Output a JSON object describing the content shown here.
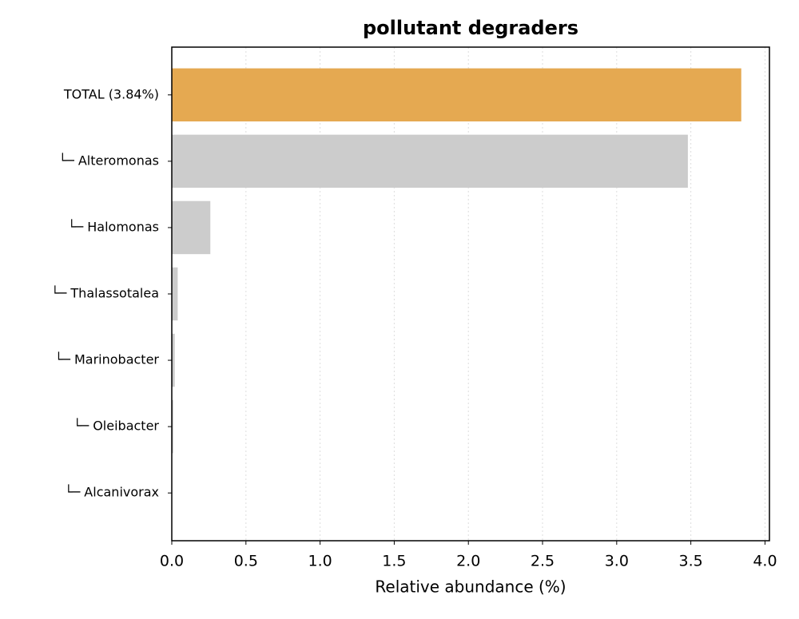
{
  "chart_data": {
    "type": "barh",
    "title": "pollutant degraders",
    "x_label": "Relative abundance (%)",
    "categories": [
      "TOTAL (3.84%)",
      "└─ Alteromonas",
      "└─ Halomonas",
      "└─ Thalassotalea",
      "└─ Marinobacter",
      "└─ Oleibacter",
      "└─ Alcanivorax"
    ],
    "values": [
      3.84,
      3.48,
      0.26,
      0.04,
      0.02,
      0.01,
      0.002
    ],
    "colors": [
      "#e5a951",
      "#cccccc",
      "#cccccc",
      "#cccccc",
      "#cccccc",
      "#cccccc",
      "#cccccc"
    ],
    "xlim": [
      0,
      4.03
    ],
    "xticks": [
      {
        "value": 0,
        "label": "0.0"
      },
      0.5,
      {
        "value": 1,
        "label": "1.0"
      },
      1.5,
      {
        "value": 2,
        "label": "2.0"
      },
      2.5,
      {
        "value": 3,
        "label": "3.0"
      },
      3.5,
      {
        "value": 4,
        "label": "4.0"
      }
    ],
    "grid": true
  }
}
